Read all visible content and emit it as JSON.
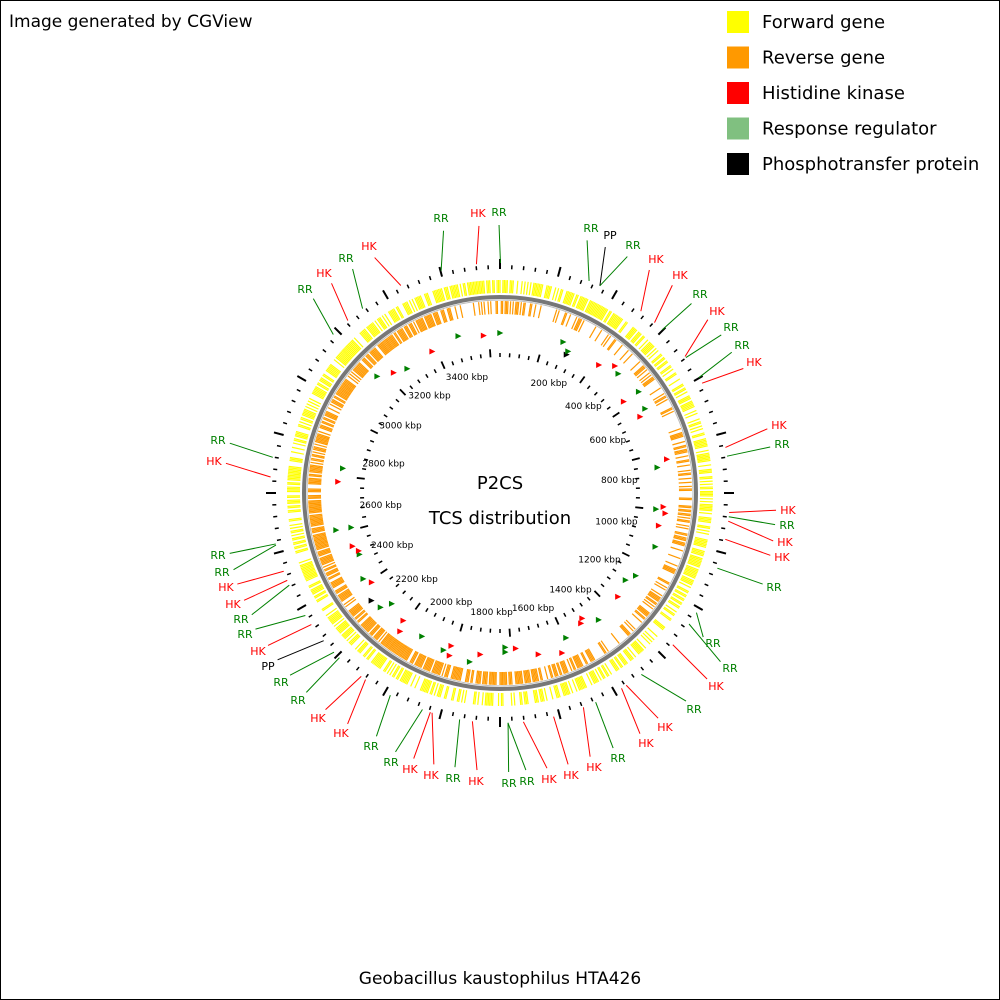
{
  "header": "Image generated by CGView",
  "legend": [
    {
      "label": "Forward gene",
      "color": "#ffff00"
    },
    {
      "label": "Reverse gene",
      "color": "#ff9900"
    },
    {
      "label": "Histidine kinase",
      "color": "#ff0000"
    },
    {
      "label": "Response regulator",
      "color": "#80c080"
    },
    {
      "label": "Phosphotransfer protein",
      "color": "#000000"
    }
  ],
  "center_title": [
    "P2CS",
    "TCS distribution"
  ],
  "scale_labels": [
    "200 kbp",
    "400 kbp",
    "600 kbp",
    "800 kbp",
    "1000 kbp",
    "1200 kbp",
    "1400 kbp",
    "1600 kbp",
    "1800 kbp",
    "2000 kbp",
    "2200 kbp",
    "2400 kbp",
    "2600 kbp",
    "2800 kbp",
    "3000 kbp",
    "3200 kbp",
    "3400 kbp"
  ],
  "features": [
    {
      "label": "RR",
      "color": "#008000"
    },
    {
      "label": "HK",
      "color": "#ff0000"
    },
    {
      "label": "RR",
      "color": "#008000"
    },
    {
      "label": "RR",
      "color": "#008000"
    },
    {
      "label": "PP",
      "color": "#000000"
    },
    {
      "label": "RR",
      "color": "#008000"
    },
    {
      "label": "HK",
      "color": "#ff0000"
    },
    {
      "label": "HK",
      "color": "#ff0000"
    },
    {
      "label": "RR",
      "color": "#008000"
    },
    {
      "label": "HK",
      "color": "#ff0000"
    },
    {
      "label": "RR",
      "color": "#008000"
    },
    {
      "label": "RR",
      "color": "#008000"
    },
    {
      "label": "HK",
      "color": "#ff0000"
    },
    {
      "label": "HK",
      "color": "#ff0000"
    },
    {
      "label": "RR",
      "color": "#008000"
    },
    {
      "label": "HK",
      "color": "#ff0000"
    },
    {
      "label": "RR",
      "color": "#008000"
    },
    {
      "label": "HK",
      "color": "#ff0000"
    },
    {
      "label": "HK",
      "color": "#ff0000"
    },
    {
      "label": "RR",
      "color": "#008000"
    },
    {
      "label": "RR",
      "color": "#008000"
    },
    {
      "label": "RR",
      "color": "#008000"
    },
    {
      "label": "HK",
      "color": "#ff0000"
    },
    {
      "label": "RR",
      "color": "#008000"
    },
    {
      "label": "HK",
      "color": "#ff0000"
    },
    {
      "label": "HK",
      "color": "#ff0000"
    },
    {
      "label": "RR",
      "color": "#008000"
    },
    {
      "label": "HK",
      "color": "#ff0000"
    },
    {
      "label": "HK",
      "color": "#ff0000"
    },
    {
      "label": "HK",
      "color": "#ff0000"
    },
    {
      "label": "RR",
      "color": "#008000"
    },
    {
      "label": "RR",
      "color": "#008000"
    },
    {
      "label": "HK",
      "color": "#ff0000"
    },
    {
      "label": "RR",
      "color": "#008000"
    },
    {
      "label": "HK",
      "color": "#ff0000"
    },
    {
      "label": "HK",
      "color": "#ff0000"
    },
    {
      "label": "RR",
      "color": "#008000"
    },
    {
      "label": "RR",
      "color": "#008000"
    },
    {
      "label": "HK",
      "color": "#ff0000"
    },
    {
      "label": "HK",
      "color": "#ff0000"
    },
    {
      "label": "RR",
      "color": "#008000"
    },
    {
      "label": "RR",
      "color": "#008000"
    },
    {
      "label": "PP",
      "color": "#000000"
    },
    {
      "label": "HK",
      "color": "#ff0000"
    },
    {
      "label": "RR",
      "color": "#008000"
    },
    {
      "label": "RR",
      "color": "#008000"
    },
    {
      "label": "HK",
      "color": "#ff0000"
    },
    {
      "label": "HK",
      "color": "#ff0000"
    },
    {
      "label": "RR",
      "color": "#008000"
    },
    {
      "label": "RR",
      "color": "#008000"
    },
    {
      "label": "HK",
      "color": "#ff0000"
    },
    {
      "label": "RR",
      "color": "#008000"
    },
    {
      "label": "RR",
      "color": "#008000"
    },
    {
      "label": "HK",
      "color": "#ff0000"
    },
    {
      "label": "RR",
      "color": "#008000"
    },
    {
      "label": "HK",
      "color": "#ff0000"
    }
  ],
  "caption": "Geobacillus kaustophilus HTA426"
}
